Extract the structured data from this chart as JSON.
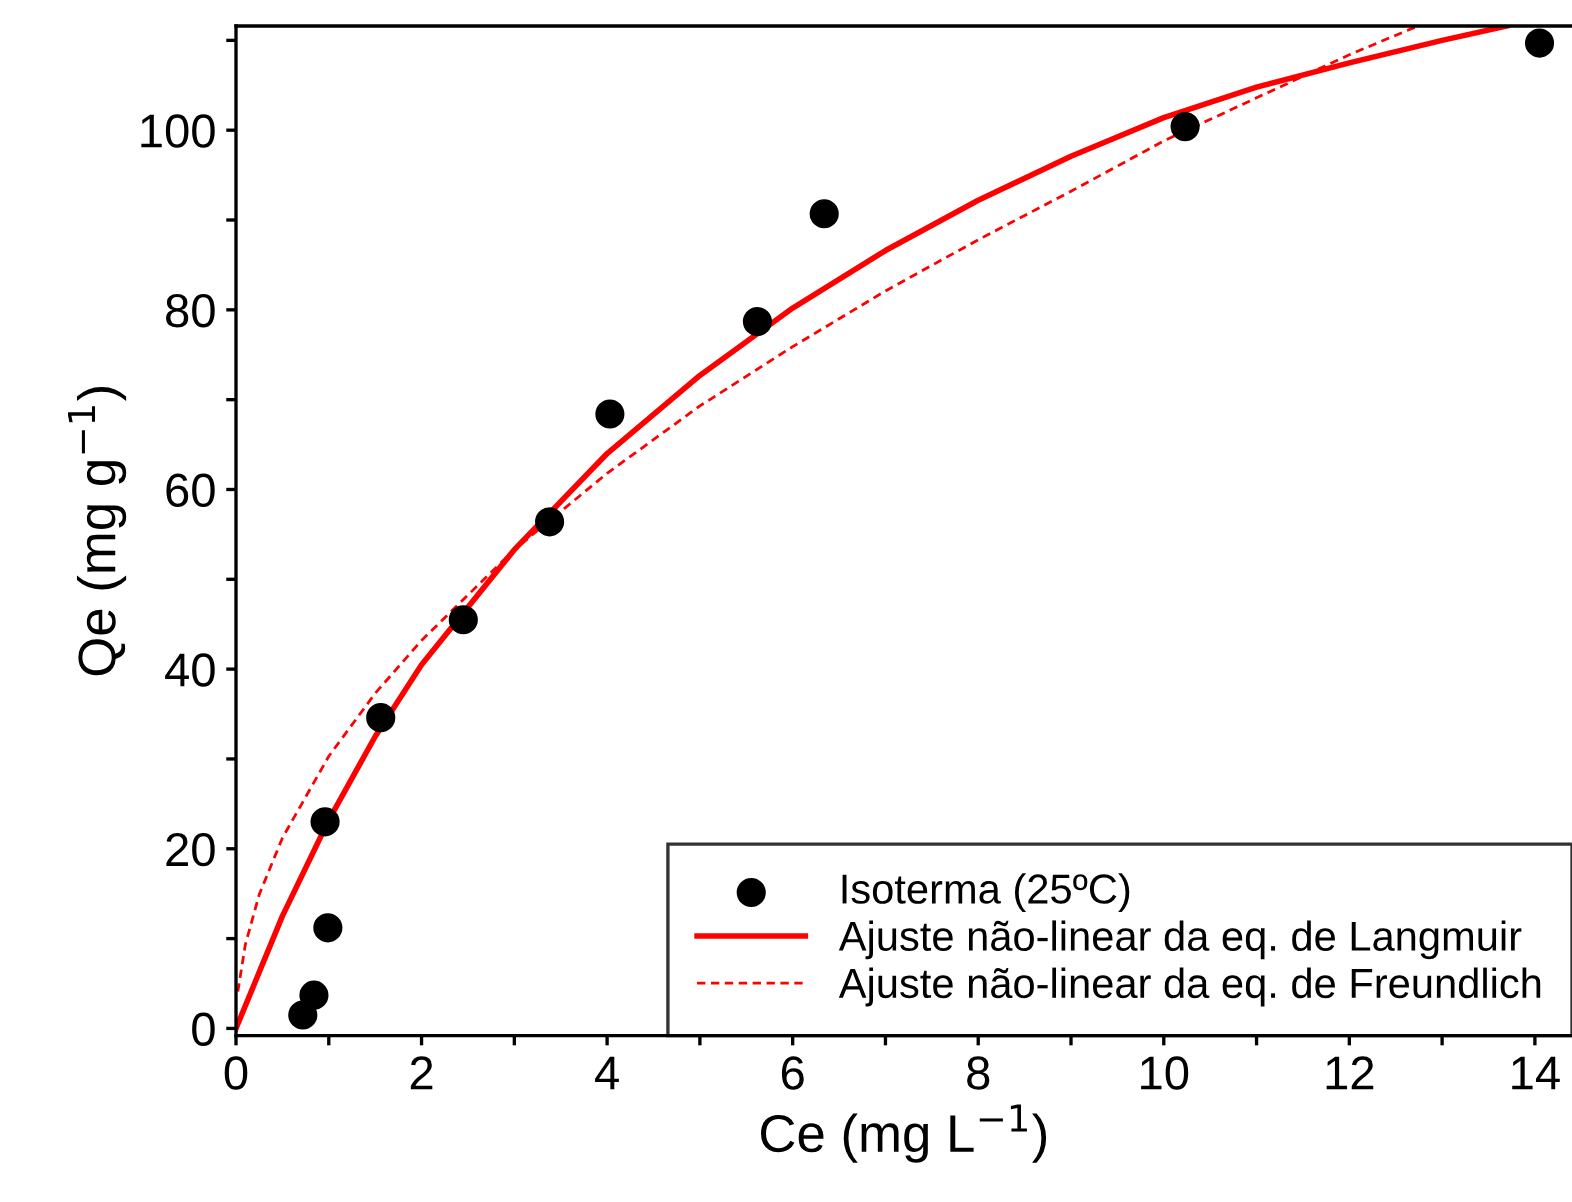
{
  "chart_data": {
    "type": "scatter",
    "xlabel": "Ce (mg L$^{−1}$)",
    "ylabel": "Qe (mg g$^{−1}$)",
    "xlim": [
      0,
      14.4
    ],
    "ylim": [
      -0.8,
      111.6
    ],
    "xticks": [
      0,
      {
        "value": 1,
        "label": null
      },
      2,
      {
        "value": 3,
        "label": null
      },
      4,
      {
        "value": 5,
        "label": null
      },
      6,
      {
        "value": 7,
        "label": null
      },
      8,
      {
        "value": 9,
        "label": null
      },
      10,
      {
        "value": 11,
        "label": null
      },
      12,
      {
        "value": 13,
        "label": null
      },
      14
    ],
    "yticks": [
      0,
      {
        "value": 10,
        "label": null
      },
      20,
      {
        "value": 30,
        "label": null
      },
      40,
      {
        "value": 50,
        "label": null
      },
      60,
      {
        "value": 70,
        "label": null
      },
      80,
      {
        "value": 90,
        "label": null
      },
      100,
      {
        "value": 110,
        "label": null
      }
    ],
    "grid": false,
    "legend": "bottom right",
    "series": [
      {
        "name": "Isoterma (25ºC)",
        "type": "scatter",
        "color": "#000000",
        "marker": "circle",
        "x": [
          0.72,
          0.84,
          0.99,
          0.96,
          1.56,
          2.45,
          3.38,
          4.03,
          5.62,
          6.34,
          10.23,
          14.05
        ],
        "values": [
          1.5,
          3.7,
          11.2,
          23.0,
          34.6,
          45.5,
          56.4,
          68.4,
          78.7,
          90.7,
          100.4,
          109.7
        ]
      },
      {
        "name": "Ajuste não-linear da eq. de Langmuir",
        "type": "line",
        "color": "#ff0000",
        "line_style": "solid",
        "marker": "none",
        "x": [
          0,
          0.5,
          1,
          1.5,
          2,
          3,
          4,
          5,
          6,
          7,
          8,
          9,
          10,
          11,
          12,
          13,
          13.7
        ],
        "values": [
          0,
          12.5,
          23.2,
          32.5,
          40.5,
          53.3,
          64,
          72.7,
          80.2,
          86.6,
          92.2,
          97.1,
          101.4,
          104.8,
          107.5,
          110,
          111.6
        ]
      },
      {
        "name": "Ajuste não-linear da eq. de Freundlich",
        "type": "line",
        "color": "#ff0000",
        "line_style": "dashed",
        "marker": "none",
        "x": [
          0.02,
          0.1,
          0.25,
          0.5,
          1,
          1.5,
          2,
          3,
          4,
          5,
          6,
          7,
          8,
          9,
          10,
          11,
          12,
          12.74
        ],
        "values": [
          4.1,
          9.3,
          14.9,
          21.2,
          30.3,
          37.3,
          43.2,
          53.3,
          61.8,
          69.3,
          75.9,
          82.1,
          87.8,
          93.2,
          98.8,
          103.6,
          108.4,
          111.6
        ]
      }
    ]
  }
}
